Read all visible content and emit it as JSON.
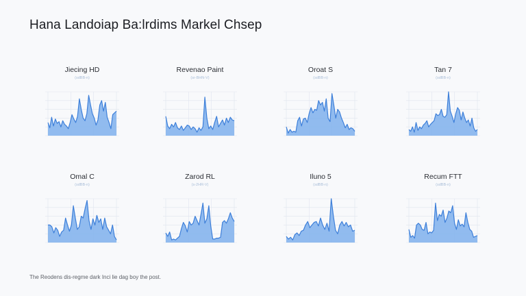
{
  "page": {
    "title": "Hana Landoiap Ba:lrdims Markel Chsep",
    "caption": "The Reodens dis-regme dark Inci lie dag boy the post."
  },
  "colors": {
    "line": "#3d7fd9",
    "fill": "#7fb0ec",
    "grid": "#dfe5ee",
    "background": "#f8f9fb"
  },
  "chart_data": [
    {
      "type": "area",
      "title": "Jiecing HD",
      "subtitle": "(sdBB-n)",
      "row": 0,
      "col": 0,
      "ylim": [
        0,
        100
      ],
      "values": [
        30,
        18,
        42,
        22,
        38,
        28,
        32,
        20,
        34,
        26,
        22,
        16,
        30,
        48,
        38,
        30,
        44,
        84,
        60,
        40,
        34,
        50,
        92,
        70,
        50,
        40,
        24,
        36,
        70,
        80,
        56,
        76,
        42,
        30,
        16,
        48,
        52,
        56
      ]
    },
    {
      "type": "area",
      "title": "Revenao Paint",
      "subtitle": "(sr-BHN-V)",
      "row": 0,
      "col": 1,
      "ylim": [
        0,
        100
      ],
      "values": [
        44,
        22,
        16,
        26,
        20,
        30,
        18,
        14,
        22,
        12,
        18,
        24,
        22,
        14,
        20,
        16,
        8,
        18,
        12,
        20,
        88,
        40,
        16,
        22,
        14,
        30,
        44,
        20,
        28,
        36,
        24,
        40,
        30,
        42,
        36,
        34
      ]
    },
    {
      "type": "area",
      "title": "Oroat S",
      "subtitle": "(sdBB-n)",
      "row": 0,
      "col": 2,
      "ylim": [
        0,
        100
      ],
      "values": [
        20,
        6,
        14,
        8,
        10,
        8,
        34,
        42,
        22,
        38,
        40,
        30,
        50,
        64,
        52,
        60,
        58,
        80,
        70,
        76,
        56,
        84,
        40,
        32,
        96,
        70,
        40,
        60,
        54,
        40,
        30,
        18,
        26,
        14,
        18,
        16,
        10
      ]
    },
    {
      "type": "area",
      "title": "Tan 7",
      "subtitle": "(sdBB-n)",
      "row": 0,
      "col": 3,
      "ylim": [
        0,
        100
      ],
      "values": [
        14,
        10,
        20,
        8,
        30,
        12,
        20,
        16,
        24,
        28,
        34,
        20,
        26,
        30,
        34,
        50,
        46,
        48,
        60,
        44,
        42,
        48,
        100,
        56,
        44,
        30,
        50,
        64,
        58,
        36,
        54,
        40,
        30,
        36,
        22,
        40,
        18,
        10,
        14
      ]
    },
    {
      "type": "area",
      "title": "Omal C",
      "subtitle": "(sdBB-n)",
      "row": 1,
      "col": 0,
      "ylim": [
        0,
        100
      ],
      "values": [
        40,
        40,
        36,
        22,
        34,
        28,
        14,
        24,
        28,
        56,
        40,
        26,
        40,
        84,
        56,
        30,
        36,
        60,
        56,
        78,
        96,
        50,
        30,
        54,
        40,
        62,
        46,
        54,
        30,
        56,
        36,
        28,
        20,
        40,
        14,
        6
      ]
    },
    {
      "type": "area",
      "title": "Zarod RL",
      "subtitle": "(s-2HR-V)",
      "row": 1,
      "col": 1,
      "ylim": [
        0,
        100
      ],
      "values": [
        22,
        14,
        24,
        6,
        8,
        6,
        10,
        14,
        32,
        46,
        38,
        24,
        48,
        40,
        44,
        60,
        50,
        40,
        64,
        90,
        44,
        54,
        84,
        38,
        8,
        8,
        10,
        10,
        12,
        46,
        50,
        44,
        54,
        68,
        56,
        48
      ]
    },
    {
      "type": "area",
      "title": "Iluno 5",
      "subtitle": "(sdBB-n)",
      "row": 1,
      "col": 2,
      "ylim": [
        0,
        100
      ],
      "values": [
        14,
        8,
        12,
        6,
        18,
        22,
        16,
        26,
        28,
        40,
        48,
        34,
        40,
        46,
        48,
        38,
        56,
        40,
        30,
        44,
        26,
        100,
        60,
        28,
        20,
        40,
        48,
        38,
        46,
        36,
        40,
        26,
        28
      ]
    },
    {
      "type": "area",
      "title": "Recum FTT",
      "subtitle": "(sdBB-n)",
      "row": 1,
      "col": 3,
      "ylim": [
        0,
        100
      ],
      "values": [
        30,
        12,
        16,
        10,
        40,
        44,
        40,
        30,
        28,
        46,
        20,
        24,
        22,
        28,
        90,
        50,
        64,
        60,
        74,
        46,
        56,
        72,
        68,
        84,
        44,
        30,
        52,
        38,
        42,
        36,
        68,
        46,
        30,
        26,
        12,
        14,
        16
      ]
    }
  ]
}
